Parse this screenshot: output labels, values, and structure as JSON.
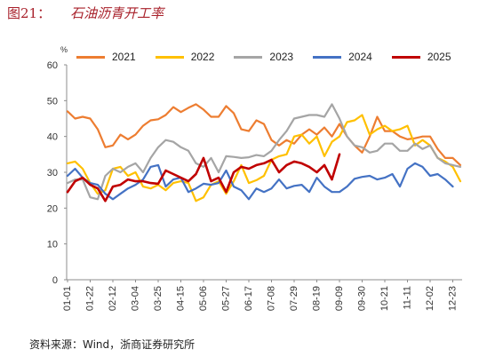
{
  "figure_label": "图21：",
  "source": "资料来源：Wind，浙商证券研究所",
  "chart_data": {
    "type": "line",
    "title": "石油沥青开工率",
    "ylabel": "%",
    "ylim": [
      0,
      60
    ],
    "yticks": [
      0,
      10,
      20,
      30,
      40,
      50,
      60
    ],
    "xticks": [
      "01-01",
      "01-22",
      "02-12",
      "03-04",
      "03-25",
      "04-15",
      "05-06",
      "05-27",
      "06-17",
      "07-08",
      "07-29",
      "08-19",
      "09-09",
      "09-30",
      "10-21",
      "11-11",
      "12-02",
      "12-23"
    ],
    "legend": "top",
    "grid": false,
    "x": [
      "01-01",
      "01-08",
      "01-15",
      "01-22",
      "01-29",
      "02-05",
      "02-12",
      "02-19",
      "02-26",
      "03-04",
      "03-11",
      "03-18",
      "03-25",
      "04-01",
      "04-08",
      "04-15",
      "04-22",
      "04-29",
      "05-06",
      "05-13",
      "05-20",
      "05-27",
      "06-03",
      "06-10",
      "06-17",
      "06-24",
      "07-01",
      "07-08",
      "07-15",
      "07-22",
      "07-29",
      "08-05",
      "08-12",
      "08-19",
      "08-26",
      "09-02",
      "09-09",
      "09-16",
      "09-23",
      "09-30",
      "10-07",
      "10-14",
      "10-21",
      "10-28",
      "11-04",
      "11-11",
      "11-18",
      "11-25",
      "12-02",
      "12-09",
      "12-16",
      "12-23",
      "12-30"
    ],
    "series": [
      {
        "name": "2021",
        "color": "#ED7D31",
        "values": [
          47,
          45,
          45.5,
          45,
          42,
          37,
          37.5,
          40.5,
          39.2,
          40.5,
          43,
          44.5,
          44.8,
          46,
          48.2,
          46.8,
          48,
          49,
          47.5,
          45.5,
          45.5,
          48.5,
          46.5,
          42,
          41.5,
          44.5,
          43.5,
          39,
          37.5,
          39,
          38,
          40.5,
          42,
          40.5,
          42.5,
          40,
          43.5,
          40,
          37.5,
          35.5,
          40,
          45.5,
          41.5,
          41.5,
          40,
          39.2,
          39.5,
          40,
          40,
          36.5,
          34,
          34,
          32
        ]
      },
      {
        "name": "2022",
        "color": "#FFC000",
        "values": [
          32.5,
          33,
          31,
          27,
          24,
          25,
          31,
          31.5,
          29,
          30,
          26,
          25.5,
          26.5,
          25,
          27,
          27.5,
          27,
          22,
          23,
          26.5,
          27.5,
          24,
          27.5,
          32,
          27,
          27.8,
          29,
          33.5,
          34.5,
          35,
          40,
          40.5,
          38,
          40,
          34.5,
          38.5,
          40,
          44,
          44.5,
          46,
          40.5,
          42,
          43,
          41.5,
          42,
          43,
          37.5,
          39,
          37.5,
          34,
          33,
          31.5,
          27.5
        ]
      },
      {
        "name": "2023",
        "color": "#A5A5A5",
        "values": [
          27,
          28,
          28,
          23,
          22.5,
          29,
          31,
          30,
          31.5,
          32.5,
          30,
          34,
          37,
          39,
          38.5,
          37,
          36,
          32.5,
          31.5,
          34,
          30,
          34.5,
          34.3,
          34,
          34.2,
          34.8,
          34.5,
          36,
          39,
          41.5,
          45,
          45.5,
          46,
          46,
          45.5,
          49,
          45,
          40,
          37.5,
          37,
          35.5,
          36,
          38,
          38,
          36,
          36,
          38,
          36.5,
          37.5,
          34,
          32.5,
          32,
          31.5
        ]
      },
      {
        "name": "2024",
        "color": "#4472C4",
        "values": [
          29,
          31,
          28.5,
          27,
          26.5,
          24,
          22.5,
          24,
          25.5,
          26.5,
          28,
          31.5,
          32,
          26,
          28,
          28.5,
          24.5,
          25.5,
          26.8,
          26.5,
          27,
          30.5,
          26,
          25,
          22.5,
          25.5,
          24.5,
          25.5,
          28,
          25.5,
          26.2,
          26.5,
          24.5,
          28.5,
          26,
          24.5,
          24.5,
          26,
          28.2,
          28.7,
          29,
          28,
          28.5,
          29.5,
          26,
          31,
          32.5,
          31.5,
          29,
          29.5,
          28,
          26,
          null
        ]
      },
      {
        "name": "2025",
        "color": "#C00000",
        "values": [
          24.5,
          27.5,
          28.5,
          26.5,
          25.5,
          22,
          26,
          26.5,
          28,
          27.5,
          27.5,
          27,
          26.8,
          30.5,
          29.5,
          28.5,
          27.5,
          29.5,
          34,
          27.5,
          28.5,
          24.5,
          30,
          31.5,
          31,
          32,
          32.5,
          33.5,
          30,
          32,
          33,
          32.5,
          31.5,
          30,
          32,
          28,
          35,
          null,
          null,
          null,
          null,
          null,
          null,
          null,
          null,
          null,
          null,
          null,
          null,
          null,
          null,
          null,
          null
        ]
      }
    ]
  }
}
